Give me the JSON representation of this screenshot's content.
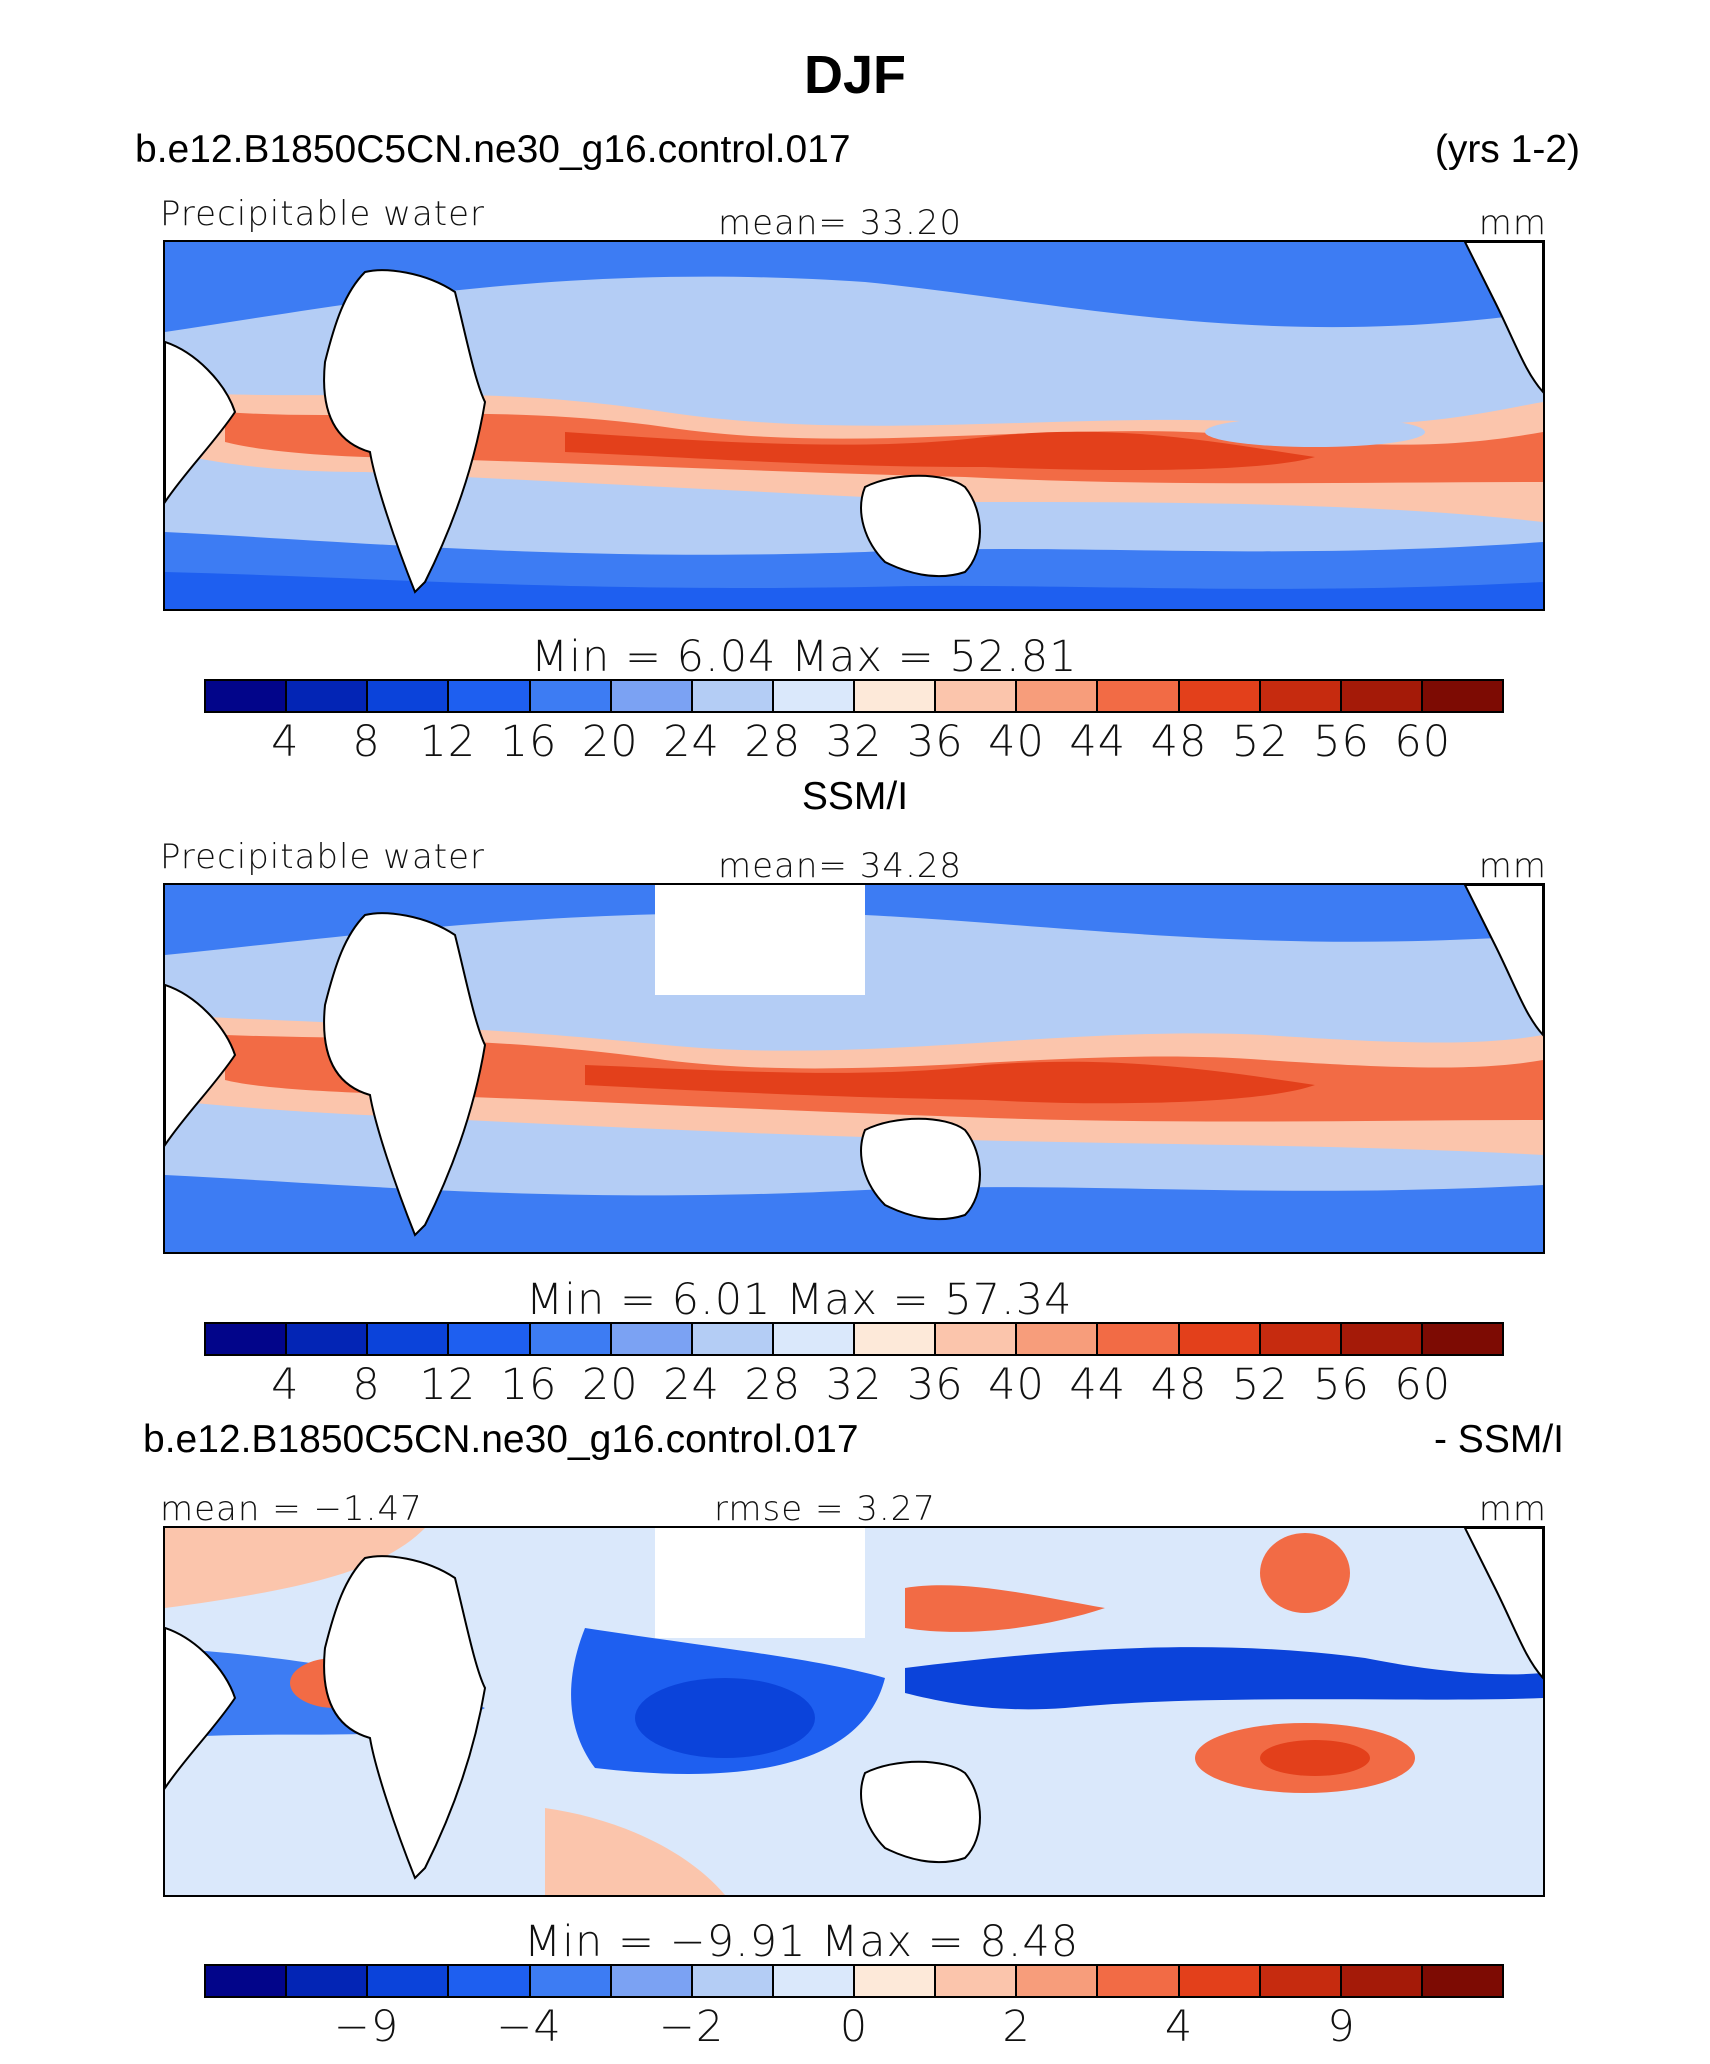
{
  "title": "DJF",
  "colorbar_colors": [
    "#02058a",
    "#0325b5",
    "#0b43da",
    "#1e5ff0",
    "#3d7cf3",
    "#7ba2f3",
    "#b4cdf5",
    "#dae8fb",
    "#fde9d9",
    "#fbc5ac",
    "#f79d7b",
    "#f26b45",
    "#e3401b",
    "#c62b0f",
    "#a41a08",
    "#7d0b03"
  ],
  "panels": [
    {
      "case_name": "b.e12.B1850C5CN.ne30_g16.control.017",
      "years": "(yrs 1-2)",
      "variable": "Precipitable water",
      "stat_left": "",
      "stat_center": "mean=   33.20",
      "units": "mm",
      "min_max": "Min  =     6.04  Max  =    52.81",
      "ticks": [
        "4",
        "8",
        "12",
        "16",
        "20",
        "24",
        "28",
        "32",
        "36",
        "40",
        "44",
        "48",
        "52",
        "56",
        "60"
      ],
      "chart_data": {
        "type": "heatmap",
        "title": "Precipitable water",
        "field": "model precipitable water",
        "season": "DJF",
        "mean": 33.2,
        "min": 6.04,
        "max": 52.81,
        "units": "mm",
        "contour_levels": [
          4,
          8,
          12,
          16,
          20,
          24,
          28,
          32,
          36,
          40,
          44,
          48,
          52,
          56,
          60
        ]
      }
    },
    {
      "case_name": "SSM/I",
      "variable": "Precipitable water",
      "stat_left": "",
      "stat_center": "mean=   34.28",
      "units": "mm",
      "min_max": "Min  =     6.01  Max  =    57.34",
      "ticks": [
        "4",
        "8",
        "12",
        "16",
        "20",
        "24",
        "28",
        "32",
        "36",
        "40",
        "44",
        "48",
        "52",
        "56",
        "60"
      ],
      "chart_data": {
        "type": "heatmap",
        "title": "Precipitable water",
        "field": "SSM/I observed precipitable water",
        "season": "DJF",
        "mean": 34.28,
        "min": 6.01,
        "max": 57.34,
        "units": "mm",
        "contour_levels": [
          4,
          8,
          12,
          16,
          20,
          24,
          28,
          32,
          36,
          40,
          44,
          48,
          52,
          56,
          60
        ]
      }
    },
    {
      "case_name": "b.e12.B1850C5CN.ne30_g16.control.017",
      "diff_suffix": "- SSM/I",
      "stat_left": "mean  =   −1.47",
      "stat_center": "rmse  =       3.27",
      "units": "mm",
      "min_max": "Min  =    −9.91  Max  =      8.48",
      "ticks": [
        "−9",
        "−4",
        "−2",
        "0",
        "2",
        "4",
        "9"
      ],
      "chart_data": {
        "type": "heatmap",
        "title": "b.e12.B1850C5CN.ne30_g16.control.017 - SSM/I",
        "field": "model minus SSM/I precipitable water",
        "season": "DJF",
        "mean": -1.47,
        "rmse": 3.27,
        "min": -9.91,
        "max": 8.48,
        "units": "mm",
        "contour_levels_labeled": [
          -9,
          -4,
          -2,
          0,
          2,
          4,
          9
        ]
      }
    }
  ]
}
